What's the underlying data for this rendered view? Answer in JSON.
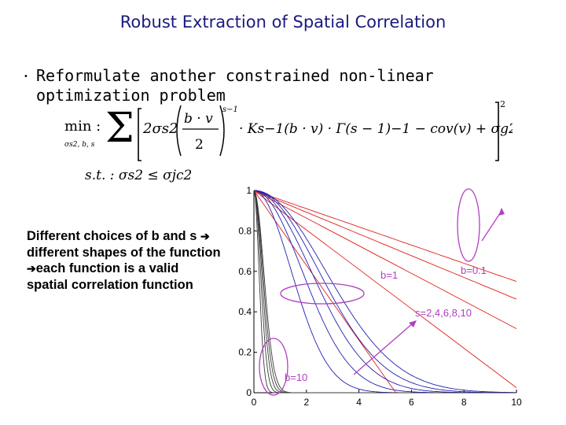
{
  "slide": {
    "title": "Robust Extraction of Spatial Correlation",
    "bullet_marker": "•",
    "bullet_text": "Reformulate another constrained non-linear optimization problem"
  },
  "formula": {
    "min_label": "min :",
    "min_sub": "σs2, b, s",
    "sigma_sum": "Σ",
    "line1_a": "2σs2",
    "frac_num": "b · v",
    "frac_den": "2",
    "exp_s1": "s−1",
    "line1_b": "· Ks−1(b · v) · Γ(s − 1)−1 − cov(v) + σg2",
    "outer_exp": "2",
    "st_line": "s.t. : σs2 ≤ σjc2"
  },
  "side_note": {
    "part1": "Different choices of b and s",
    "arrow1": "➔",
    "part2": "different shapes of the function",
    "arrow2": "➔",
    "part3": "each function is a valid spatial correlation function"
  },
  "chart_data": {
    "type": "line",
    "title": "",
    "xlabel": "",
    "ylabel": "",
    "xlim": [
      0,
      10
    ],
    "ylim": [
      0,
      1
    ],
    "x_ticks": [
      "0",
      "2",
      "4",
      "6",
      "8",
      "10"
    ],
    "y_ticks": [
      "0",
      "0.2",
      "0.4",
      "0.6",
      "0.8",
      "1"
    ],
    "grid": false,
    "colors": {
      "red": "#e0201c",
      "blue": "#1f1fb0",
      "dark": "#3a3a3a",
      "ellipse": "#b040c0"
    },
    "annotations": [
      {
        "text": "b=0.1"
      },
      {
        "text": "b=1"
      },
      {
        "text": "s=2,4,6,8,10"
      },
      {
        "text": "b=10"
      }
    ],
    "series_groups": [
      {
        "b": 0.1,
        "s": [
          2,
          4,
          6,
          8,
          10
        ],
        "color": "red"
      },
      {
        "b": 1,
        "s": [
          2,
          4,
          6,
          8,
          10
        ],
        "color": "blue"
      },
      {
        "b": 10,
        "s": [
          2,
          4,
          6,
          8,
          10
        ],
        "color": "dark"
      }
    ]
  }
}
